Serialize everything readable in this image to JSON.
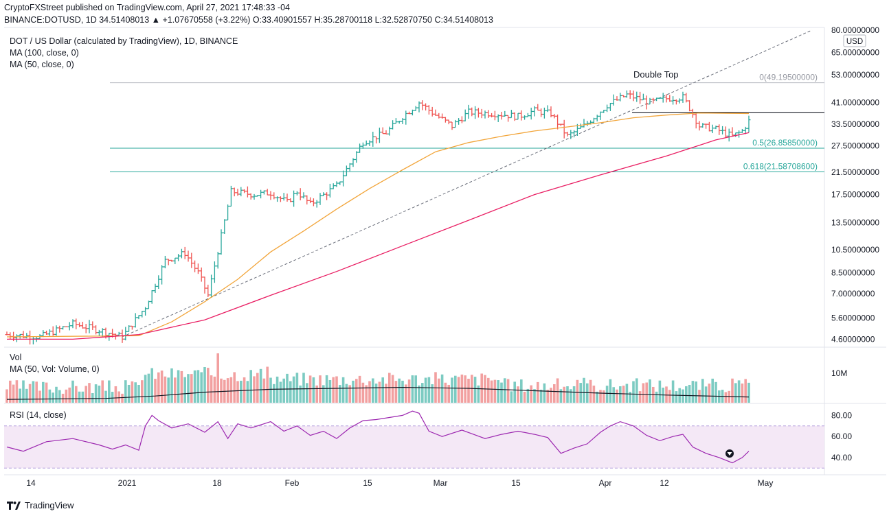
{
  "header": {
    "line1": "CryptoFXStreet published on TradingView.com, April 27, 2021 17:48:33 -04",
    "line2": "BINANCE:DOTUSD, 1D 34.51408013 ▲ +1.07670558 (+3.22%) O:33.40901557 H:35.28700118 L:32.52870750 C:34.51408013"
  },
  "legend": {
    "symbol": "DOT / US Dollar (calculated by TradingView), 1D, BINANCE",
    "ma100": "MA (100, close, 0)",
    "ma50": "MA (50, close, 0)"
  },
  "volume_panel": {
    "title": "Vol",
    "ma": "MA (50, Vol: Volume, 0)",
    "tick": "10M"
  },
  "rsi_panel": {
    "title": "RSI (14, close)",
    "ticks": [
      "80.00",
      "60.00",
      "40.00"
    ]
  },
  "currency_badge": "USD",
  "footer": {
    "brand": "TradingView"
  },
  "colors": {
    "up": "#26a69a",
    "down": "#ef5350",
    "ma50": "#f2a53a",
    "ma100": "#e91e63",
    "rsi": "#9c27b0",
    "fib": "#26a69a",
    "volMA": "#131722"
  },
  "chart_data": {
    "type": "line",
    "scale": "log",
    "xlabels": [
      "14",
      "2021",
      "18",
      "Feb",
      "15",
      "Mar",
      "15",
      "Apr",
      "12",
      "May"
    ],
    "yticks": [
      "80.00000000",
      "65.00000000",
      "53.00000000",
      "41.00000000",
      "33.50000000",
      "27.50000000",
      "21.50000000",
      "17.50000000",
      "13.50000000",
      "10.50000000",
      "8.50000000",
      "7.00000000",
      "5.60000000",
      "4.60000000"
    ],
    "ylim": [
      4.3,
      82
    ],
    "price_path": [
      [
        0,
        4.8
      ],
      [
        10,
        4.7
      ],
      [
        20,
        5.3
      ],
      [
        28,
        5.0
      ],
      [
        35,
        4.7
      ],
      [
        42,
        6.2
      ],
      [
        48,
        9.5
      ],
      [
        54,
        10.2
      ],
      [
        58,
        8.5
      ],
      [
        61,
        6.9
      ],
      [
        68,
        18.0
      ],
      [
        75,
        17.5
      ],
      [
        80,
        17.8
      ],
      [
        85,
        16.3
      ],
      [
        88,
        18.0
      ],
      [
        92,
        16.0
      ],
      [
        100,
        19.0
      ],
      [
        108,
        28.5
      ],
      [
        115,
        31.0
      ],
      [
        120,
        36.0
      ],
      [
        125,
        41.0
      ],
      [
        130,
        36.5
      ],
      [
        135,
        33.0
      ],
      [
        140,
        37.5
      ],
      [
        148,
        37.0
      ],
      [
        155,
        36.0
      ],
      [
        160,
        38.0
      ],
      [
        165,
        37.0
      ],
      [
        170,
        30.0
      ],
      [
        175,
        33.0
      ],
      [
        182,
        40.0
      ],
      [
        188,
        44.0
      ],
      [
        195,
        41.0
      ],
      [
        200,
        42.5
      ],
      [
        205,
        43.0
      ],
      [
        207,
        39.0
      ],
      [
        210,
        33.0
      ],
      [
        215,
        32.0
      ],
      [
        220,
        30.0
      ],
      [
        223,
        31.5
      ],
      [
        225,
        34.5
      ]
    ],
    "ma50": [
      [
        0,
        4.7
      ],
      [
        40,
        4.75
      ],
      [
        50,
        5.4
      ],
      [
        60,
        6.5
      ],
      [
        70,
        8.0
      ],
      [
        80,
        10.3
      ],
      [
        90,
        12.5
      ],
      [
        100,
        15.3
      ],
      [
        110,
        18.5
      ],
      [
        120,
        22.0
      ],
      [
        130,
        26.0
      ],
      [
        140,
        28.3
      ],
      [
        150,
        30.0
      ],
      [
        160,
        31.5
      ],
      [
        170,
        32.7
      ],
      [
        180,
        34.0
      ],
      [
        190,
        35.6
      ],
      [
        200,
        36.5
      ],
      [
        210,
        37.2
      ],
      [
        225,
        37.0
      ]
    ],
    "ma100": [
      [
        0,
        4.6
      ],
      [
        20,
        4.6
      ],
      [
        40,
        4.8
      ],
      [
        60,
        5.5
      ],
      [
        80,
        6.9
      ],
      [
        100,
        8.6
      ],
      [
        120,
        10.9
      ],
      [
        140,
        13.8
      ],
      [
        160,
        17.5
      ],
      [
        180,
        21.0
      ],
      [
        200,
        25.0
      ],
      [
        215,
        29.0
      ],
      [
        225,
        31.0
      ]
    ],
    "trendline": [
      [
        35,
        4.7
      ],
      [
        225,
        80
      ]
    ],
    "fib_levels": [
      {
        "label": "0(49.19500000)",
        "price": 49.195
      },
      {
        "label": "0.5(26.85850000)",
        "price": 26.8585
      },
      {
        "label": "0.618(21.58708600)",
        "price": 21.587086
      }
    ],
    "neckline": 37.4,
    "annotation": "Double Top",
    "rsi": [
      [
        0,
        50
      ],
      [
        5,
        46
      ],
      [
        12,
        55
      ],
      [
        20,
        58
      ],
      [
        28,
        52
      ],
      [
        32,
        48
      ],
      [
        36,
        52
      ],
      [
        40,
        47
      ],
      [
        42,
        70
      ],
      [
        44,
        80
      ],
      [
        46,
        75
      ],
      [
        50,
        68
      ],
      [
        55,
        72
      ],
      [
        60,
        64
      ],
      [
        64,
        74
      ],
      [
        67,
        58
      ],
      [
        70,
        72
      ],
      [
        74,
        68
      ],
      [
        80,
        74
      ],
      [
        84,
        65
      ],
      [
        88,
        70
      ],
      [
        92,
        61
      ],
      [
        96,
        65
      ],
      [
        100,
        58
      ],
      [
        104,
        68
      ],
      [
        108,
        75
      ],
      [
        112,
        76
      ],
      [
        116,
        78
      ],
      [
        120,
        80
      ],
      [
        123,
        84
      ],
      [
        125,
        82
      ],
      [
        128,
        65
      ],
      [
        132,
        60
      ],
      [
        138,
        66
      ],
      [
        145,
        58
      ],
      [
        150,
        62
      ],
      [
        155,
        65
      ],
      [
        160,
        62
      ],
      [
        164,
        59
      ],
      [
        168,
        44
      ],
      [
        172,
        49
      ],
      [
        176,
        53
      ],
      [
        180,
        64
      ],
      [
        183,
        70
      ],
      [
        186,
        74
      ],
      [
        190,
        70
      ],
      [
        194,
        61
      ],
      [
        198,
        56
      ],
      [
        202,
        60
      ],
      [
        205,
        62
      ],
      [
        208,
        50
      ],
      [
        212,
        44
      ],
      [
        216,
        40
      ],
      [
        220,
        35
      ],
      [
        223,
        40
      ],
      [
        225,
        46
      ]
    ],
    "rsi_ylim": [
      25,
      90
    ],
    "rsi_band": [
      30,
      70
    ],
    "volume_note": "daily volume bars with 50-day MA"
  }
}
